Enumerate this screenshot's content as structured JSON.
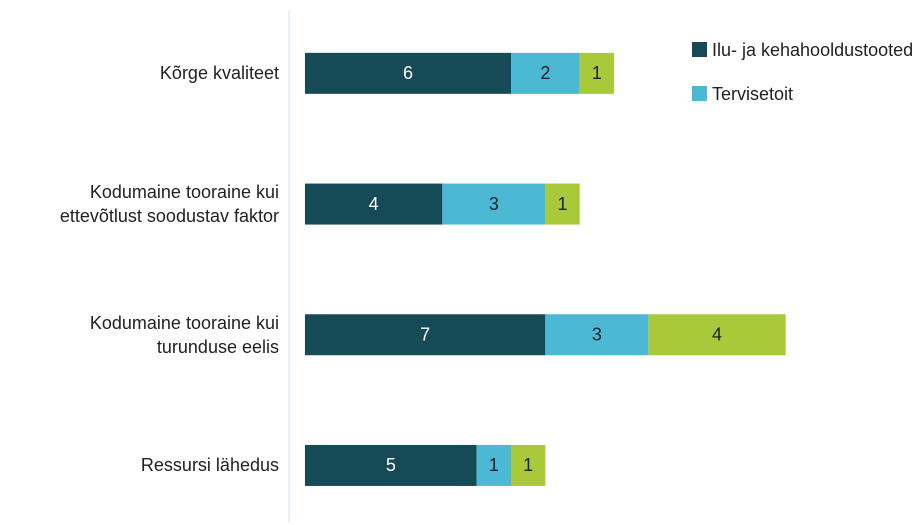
{
  "chart_data": {
    "type": "bar",
    "orientation": "horizontal",
    "stacked": true,
    "categories": [
      "Kõrge kvaliteet",
      "Kodumaine tooraine kui ettevõtlust soodustav faktor",
      "Kodumaine tooraine kui turunduse eelis",
      "Ressursi lähedus"
    ],
    "series": [
      {
        "name": "Ilu- ja kehahooldustooted",
        "color": "#174a57",
        "values": [
          6,
          4,
          7,
          5
        ]
      },
      {
        "name": "Tervisetoit",
        "color": "#4bb8d4",
        "values": [
          2,
          3,
          3,
          1
        ]
      },
      {
        "color": "#a8c93a",
        "values": [
          1,
          1,
          4,
          1
        ]
      }
    ]
  }
}
